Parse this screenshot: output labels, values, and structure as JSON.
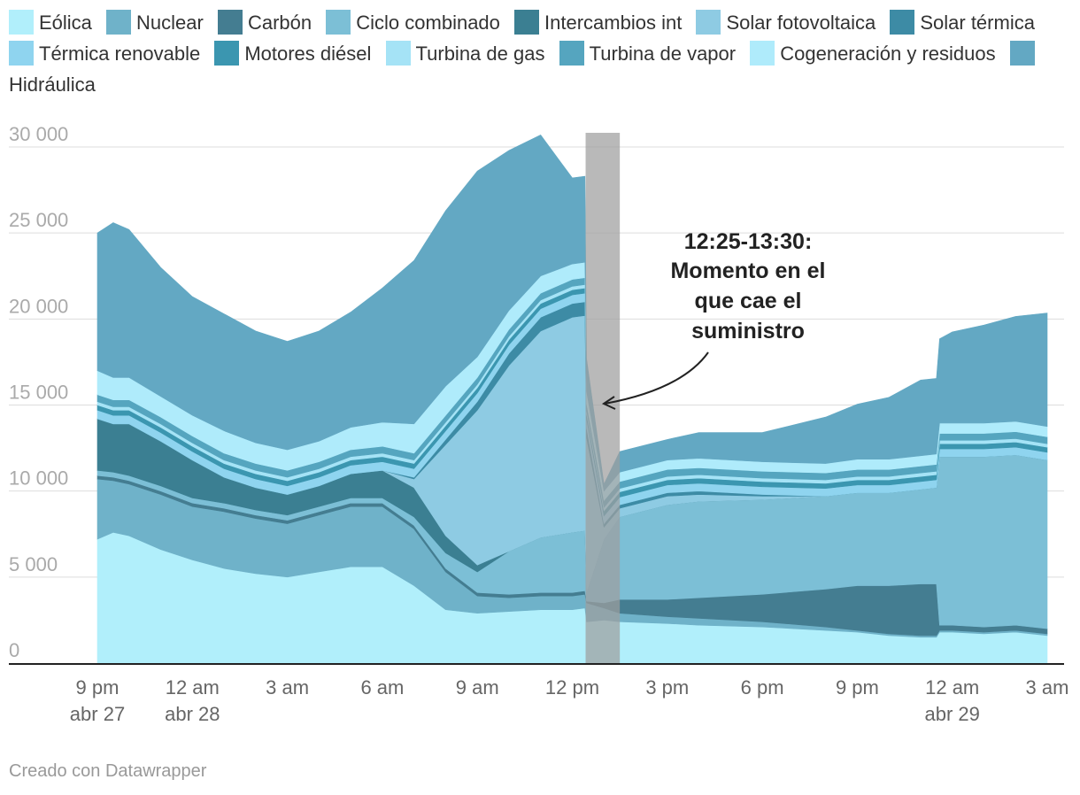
{
  "legend": [
    {
      "name": "Eólica",
      "color": "#b1effb"
    },
    {
      "name": "Nuclear",
      "color": "#6fb2c9"
    },
    {
      "name": "Carbón",
      "color": "#447d91"
    },
    {
      "name": "Ciclo combinado",
      "color": "#7cbfd6"
    },
    {
      "name": "Intercambios int",
      "color": "#3b7f92"
    },
    {
      "name": "Solar fotovoltaica",
      "color": "#8ecbe3"
    },
    {
      "name": "Solar térmica",
      "color": "#3d8ba5"
    },
    {
      "name": "Térmica renovable",
      "color": "#8fd4ef"
    },
    {
      "name": "Motores diésel",
      "color": "#3b96b0"
    },
    {
      "name": "Turbina de gas",
      "color": "#a5e3f6"
    },
    {
      "name": "Turbina de vapor",
      "color": "#55a5bf"
    },
    {
      "name": "Cogeneración y residuos",
      "color": "#afebfb"
    },
    {
      "name": "Hidráulica",
      "color": "#63a8c3"
    }
  ],
  "chart_data": {
    "type": "area",
    "stacked": true,
    "x_unit": "hours since 9 pm abr 27",
    "xlim": [
      0,
      30
    ],
    "ylim": [
      0,
      30000
    ],
    "yticks": [
      {
        "value": 0,
        "label": "0"
      },
      {
        "value": 5000,
        "label": "5 000"
      },
      {
        "value": 10000,
        "label": "10 000"
      },
      {
        "value": 15000,
        "label": "15 000"
      },
      {
        "value": 20000,
        "label": "20 000"
      },
      {
        "value": 25000,
        "label": "25 000"
      },
      {
        "value": 30000,
        "label": "30 000"
      }
    ],
    "xticks": [
      {
        "value": 0,
        "line1": "9 pm",
        "line2": "abr 27"
      },
      {
        "value": 3,
        "line1": "12 am",
        "line2": "abr 28"
      },
      {
        "value": 6,
        "line1": "3 am",
        "line2": ""
      },
      {
        "value": 9,
        "line1": "6 am",
        "line2": ""
      },
      {
        "value": 12,
        "line1": "9 am",
        "line2": ""
      },
      {
        "value": 15,
        "line1": "12 pm",
        "line2": ""
      },
      {
        "value": 18,
        "line1": "3 pm",
        "line2": ""
      },
      {
        "value": 21,
        "line1": "6 pm",
        "line2": ""
      },
      {
        "value": 24,
        "line1": "9 pm",
        "line2": ""
      },
      {
        "value": 27,
        "line1": "12 am",
        "line2": "abr 29"
      },
      {
        "value": 30,
        "line1": "3 am",
        "line2": ""
      }
    ],
    "x": [
      0,
      0.5,
      1,
      2,
      3,
      4,
      5,
      6,
      7,
      8,
      9,
      10,
      11,
      12,
      13,
      14,
      15,
      15.4,
      15.45,
      16,
      16.5,
      18,
      19,
      21,
      23,
      24,
      25,
      26,
      26.5,
      26.6,
      27,
      28,
      29,
      30
    ],
    "series": [
      {
        "name": "Eólica",
        "values": [
          7200,
          7600,
          7400,
          6600,
          6000,
          5500,
          5200,
          5000,
          5300,
          5600,
          5600,
          4500,
          3100,
          2900,
          3000,
          3100,
          3100,
          3200,
          2400,
          2500,
          2400,
          2300,
          2200,
          2100,
          1900,
          1800,
          1600,
          1500,
          1500,
          1800,
          1800,
          1700,
          1800,
          1600
        ]
      },
      {
        "name": "Nuclear",
        "values": [
          3500,
          3000,
          3000,
          3200,
          3100,
          3300,
          3200,
          3100,
          3300,
          3500,
          3500,
          3300,
          2200,
          1000,
          800,
          800,
          800,
          800,
          1100,
          700,
          500,
          400,
          400,
          300,
          200,
          100,
          100,
          100,
          100,
          100,
          100,
          100,
          100,
          100
        ]
      },
      {
        "name": "Carbón",
        "values": [
          200,
          200,
          200,
          200,
          200,
          200,
          200,
          200,
          200,
          200,
          200,
          200,
          200,
          200,
          200,
          200,
          200,
          200,
          100,
          300,
          800,
          1000,
          1200,
          1600,
          2200,
          2600,
          2800,
          3000,
          3000,
          300,
          300,
          300,
          300,
          300
        ]
      },
      {
        "name": "Ciclo combinado",
        "values": [
          300,
          300,
          300,
          300,
          300,
          300,
          300,
          300,
          300,
          300,
          300,
          500,
          900,
          1200,
          2500,
          3200,
          3500,
          3500,
          500,
          3700,
          4800,
          5500,
          5600,
          5500,
          5400,
          5400,
          5400,
          5500,
          5600,
          9800,
          9800,
          9900,
          9900,
          9800
        ]
      },
      {
        "name": "Intercambios int",
        "values": [
          3000,
          2800,
          3000,
          2600,
          2200,
          1500,
          1300,
          1200,
          1200,
          1400,
          1600,
          1700,
          1000,
          400,
          0,
          0,
          0,
          0,
          0,
          0,
          0,
          0,
          0,
          0,
          0,
          0,
          0,
          0,
          0,
          0,
          0,
          0,
          0,
          0
        ]
      },
      {
        "name": "Solar fotovoltaica",
        "values": [
          0,
          0,
          0,
          0,
          0,
          0,
          0,
          0,
          0,
          0,
          0,
          500,
          5300,
          9000,
          10800,
          12000,
          12500,
          12500,
          9000,
          700,
          500,
          500,
          400,
          200,
          0,
          0,
          0,
          0,
          0,
          0,
          0,
          0,
          0,
          0
        ]
      },
      {
        "name": "Solar térmica",
        "values": [
          0,
          0,
          0,
          0,
          0,
          0,
          0,
          0,
          0,
          0,
          0,
          100,
          300,
          500,
          700,
          800,
          800,
          800,
          600,
          200,
          200,
          200,
          200,
          100,
          0,
          0,
          0,
          0,
          0,
          0,
          0,
          0,
          0,
          0
        ]
      },
      {
        "name": "Térmica renovable",
        "values": [
          500,
          500,
          500,
          500,
          500,
          500,
          500,
          500,
          500,
          500,
          500,
          500,
          500,
          500,
          500,
          500,
          500,
          500,
          500,
          450,
          450,
          450,
          450,
          450,
          450,
          450,
          450,
          450,
          450,
          450,
          450,
          450,
          450,
          450
        ]
      },
      {
        "name": "Motores diésel",
        "values": [
          300,
          300,
          300,
          300,
          300,
          300,
          300,
          300,
          300,
          300,
          300,
          300,
          300,
          300,
          300,
          300,
          300,
          300,
          300,
          300,
          300,
          300,
          300,
          300,
          300,
          300,
          300,
          300,
          300,
          300,
          300,
          300,
          300,
          300
        ]
      },
      {
        "name": "Turbina de gas",
        "values": [
          200,
          200,
          200,
          200,
          200,
          200,
          200,
          200,
          200,
          200,
          200,
          200,
          200,
          200,
          200,
          200,
          200,
          200,
          200,
          200,
          200,
          200,
          200,
          200,
          200,
          200,
          200,
          200,
          200,
          200,
          200,
          200,
          200,
          200
        ]
      },
      {
        "name": "Turbina de vapor",
        "values": [
          400,
          400,
          400,
          400,
          400,
          400,
          400,
          400,
          400,
          400,
          400,
          400,
          400,
          400,
          400,
          400,
          400,
          400,
          400,
          400,
          400,
          400,
          400,
          400,
          400,
          400,
          400,
          400,
          400,
          400,
          400,
          400,
          400,
          400
        ]
      },
      {
        "name": "Cogeneración y residuos",
        "values": [
          1400,
          1300,
          1300,
          1200,
          1200,
          1300,
          1200,
          1200,
          1200,
          1300,
          1400,
          1700,
          1700,
          1200,
          1100,
          1000,
          900,
          900,
          700,
          550,
          550,
          550,
          550,
          550,
          550,
          600,
          600,
          600,
          600,
          600,
          600,
          600,
          600,
          600
        ]
      },
      {
        "name": "Hidráulica",
        "values": [
          8000,
          9000,
          8600,
          7500,
          6900,
          6800,
          6500,
          6300,
          6400,
          6700,
          7800,
          9500,
          10200,
          10800,
          9300,
          8200,
          5000,
          5000,
          1900,
          400,
          1200,
          1200,
          1500,
          1700,
          2700,
          3200,
          3600,
          4400,
          4400,
          4900,
          5300,
          5700,
          6100,
          6600
        ]
      }
    ],
    "highlight": {
      "x0": 15.42,
      "x1": 16.5,
      "label": "12:25-13:30",
      "color": "#9e9e9e"
    },
    "annotation": {
      "lines": [
        "12:25-13:30:",
        "Momento en el",
        "que cae el",
        "suministro"
      ],
      "points_to_x": 16.1,
      "points_to_y": 15000
    }
  },
  "credit": "Creado con Datawrapper"
}
